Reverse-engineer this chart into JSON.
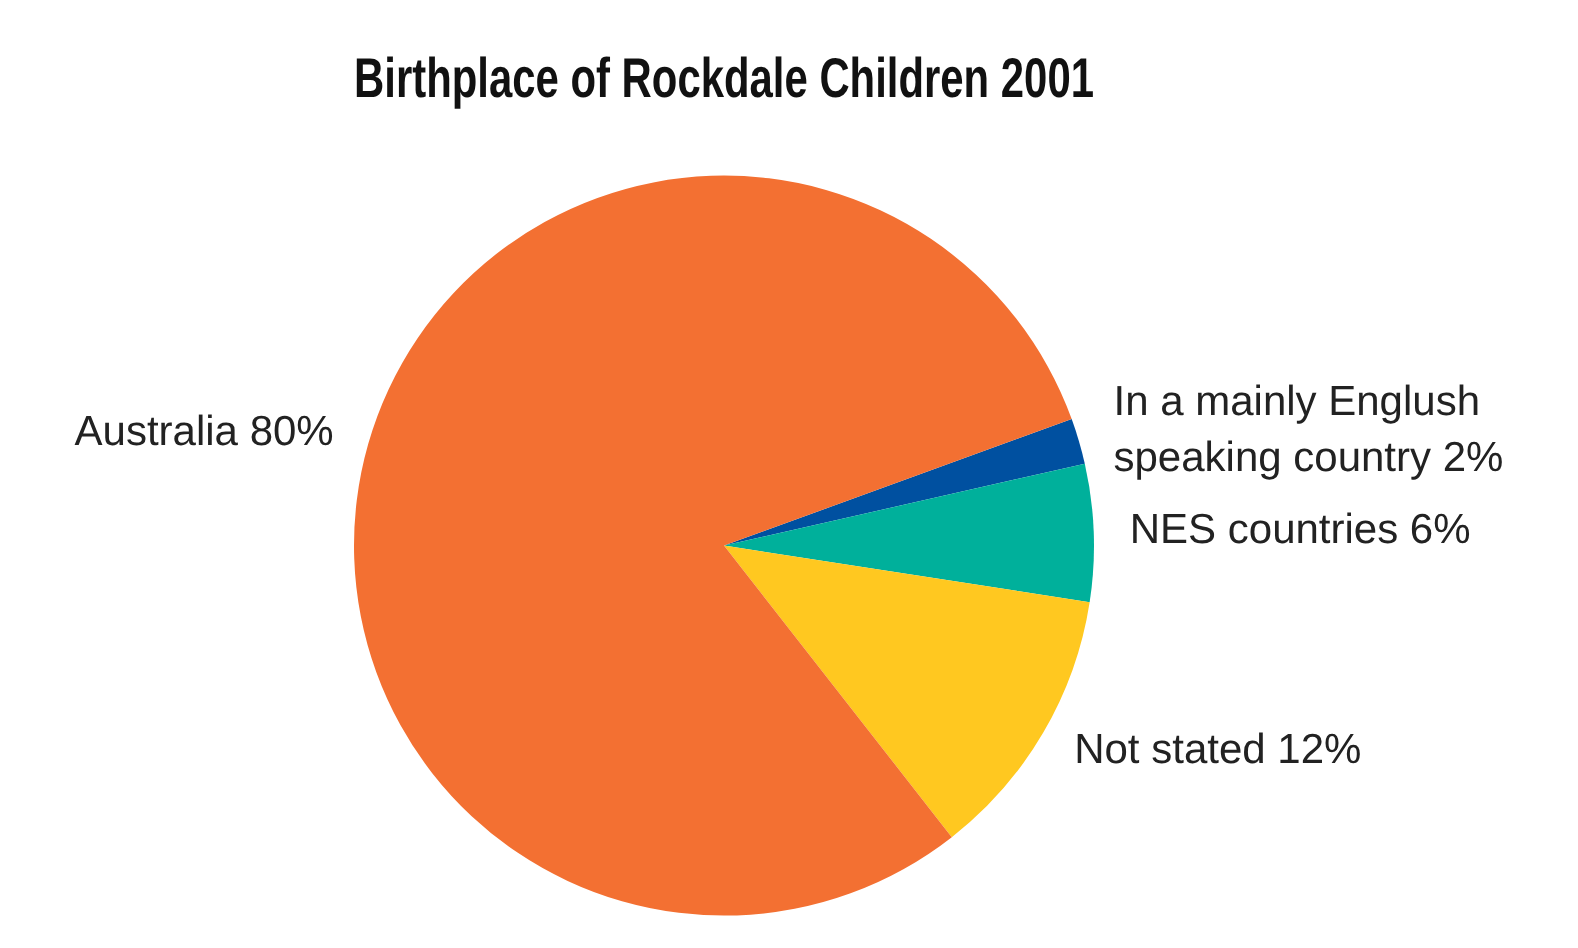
{
  "chart_data": {
    "type": "pie",
    "title": "Birthplace of Rockdale Children 2001",
    "categories": [
      "In a mainly Englush speaking country",
      "NES countries",
      "Not stated",
      "Australia"
    ],
    "values": [
      2,
      6,
      12,
      80
    ],
    "value_labels": [
      "2%",
      "6%",
      "12%",
      "80%"
    ],
    "colors": [
      "#0050a0",
      "#00b09b",
      "#ffc820",
      "#f37032"
    ],
    "legend": false
  }
}
